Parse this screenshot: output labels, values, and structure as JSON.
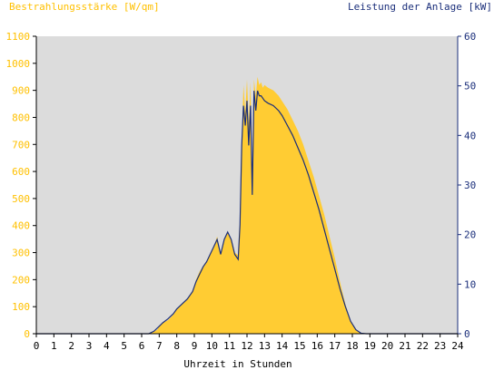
{
  "chart_data": {
    "type": "area",
    "title_left": "Bestrahlungsstärke [W/qm]",
    "title_right": "Leistung der Anlage [kW]",
    "xlabel": "Uhrzeit in Stunden",
    "xlim": [
      0,
      24
    ],
    "x_ticks": [
      "0",
      "1",
      "2",
      "3",
      "4",
      "5",
      "6",
      "7",
      "8",
      "9",
      "10",
      "11",
      "12",
      "13",
      "14",
      "15",
      "16",
      "17",
      "18",
      "19",
      "20",
      "21",
      "22",
      "23",
      "24"
    ],
    "y_left": {
      "lim": [
        0,
        1100
      ],
      "ticks": [
        "0",
        "100",
        "200",
        "300",
        "400",
        "500",
        "600",
        "700",
        "800",
        "900",
        "1000",
        "1100"
      ]
    },
    "y_right": {
      "lim": [
        0,
        60
      ],
      "ticks": [
        "0",
        "10",
        "20",
        "30",
        "40",
        "50",
        "60"
      ]
    },
    "colors": {
      "irradiance": "#ffcc33",
      "power": "#1a2e7a",
      "plot_bg": "#dcdcdc",
      "left_axis_text": "#ffc000",
      "right_axis_text": "#1a2e7a"
    },
    "grid": false,
    "series": [
      {
        "axis": "left",
        "style": "area",
        "x": [
          0,
          6.3,
          6.6,
          6.9,
          7.0,
          7.2,
          7.5,
          7.8,
          8.0,
          8.3,
          8.6,
          8.9,
          9.1,
          9.3,
          9.5,
          9.7,
          9.9,
          10.1,
          10.3,
          10.5,
          10.7,
          10.9,
          11.1,
          11.3,
          11.5,
          11.6,
          11.7,
          11.8,
          11.9,
          12.0,
          12.1,
          12.2,
          12.3,
          12.4,
          12.5,
          12.6,
          12.7,
          12.8,
          12.9,
          13.0,
          13.2,
          13.5,
          13.8,
          14.0,
          14.3,
          14.6,
          14.9,
          15.2,
          15.5,
          15.8,
          16.1,
          16.4,
          16.7,
          17.0,
          17.3,
          17.6,
          17.9,
          18.2,
          18.5,
          18.8,
          19.0,
          24
        ],
        "y": [
          0,
          0,
          5,
          15,
          30,
          40,
          50,
          70,
          90,
          110,
          130,
          160,
          200,
          230,
          250,
          270,
          290,
          320,
          360,
          300,
          350,
          380,
          350,
          300,
          290,
          400,
          700,
          920,
          820,
          940,
          780,
          930,
          520,
          940,
          880,
          950,
          920,
          930,
          910,
          920,
          910,
          900,
          880,
          860,
          830,
          790,
          750,
          700,
          640,
          580,
          510,
          440,
          360,
          280,
          190,
          110,
          50,
          15,
          3,
          0,
          0,
          0
        ]
      },
      {
        "axis": "right",
        "style": "line",
        "x": [
          0,
          6.4,
          6.7,
          7.0,
          7.2,
          7.5,
          7.8,
          8.0,
          8.3,
          8.6,
          8.9,
          9.1,
          9.3,
          9.5,
          9.7,
          9.9,
          10.1,
          10.3,
          10.5,
          10.7,
          10.9,
          11.1,
          11.3,
          11.5,
          11.6,
          11.7,
          11.8,
          11.9,
          12.0,
          12.1,
          12.2,
          12.3,
          12.4,
          12.5,
          12.6,
          12.7,
          12.8,
          12.9,
          13.0,
          13.2,
          13.5,
          13.8,
          14.0,
          14.3,
          14.6,
          14.9,
          15.2,
          15.5,
          15.8,
          16.1,
          16.4,
          16.7,
          17.0,
          17.3,
          17.6,
          17.9,
          18.2,
          18.5,
          18.8,
          19.0,
          24
        ],
        "y": [
          0,
          0,
          0.5,
          1.5,
          2.2,
          3,
          4,
          5,
          6,
          7,
          8.5,
          10.5,
          12,
          13.5,
          14.5,
          16,
          17.5,
          19,
          16,
          19,
          20.5,
          19,
          16,
          15,
          22,
          38,
          46,
          42,
          47,
          38,
          46,
          28,
          49,
          45,
          49,
          48,
          48,
          47.5,
          47,
          46.5,
          46,
          45,
          44,
          42,
          40,
          37.5,
          35,
          32,
          28.5,
          25,
          21,
          17,
          13,
          9,
          5.5,
          2.5,
          0.8,
          0.1,
          0,
          0,
          0
        ]
      }
    ]
  }
}
